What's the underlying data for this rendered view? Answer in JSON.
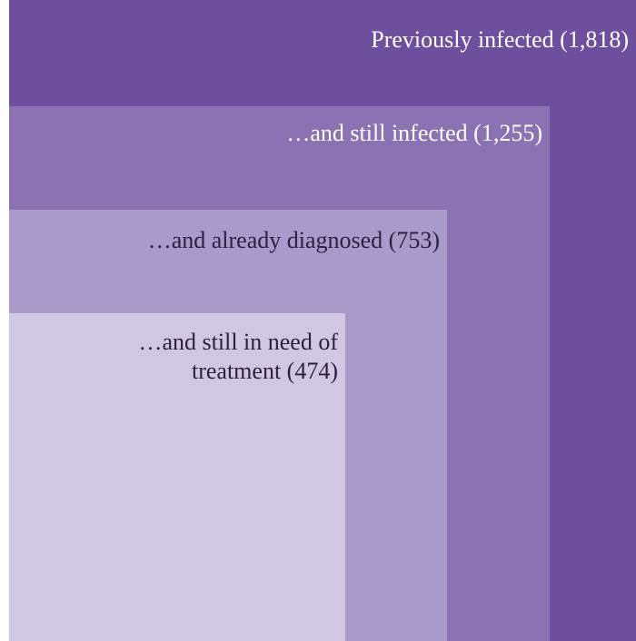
{
  "levels": [
    {
      "label": "Previously infected (1,818)",
      "count": 1818,
      "fill": "#6e4f9e",
      "text_color": "#ffffff"
    },
    {
      "label": "…and still infected (1,255)",
      "count": 1255,
      "fill": "#8a72b3",
      "text_color": "#ffffff"
    },
    {
      "label": "…and already diagnosed (753)",
      "count": 753,
      "fill": "#a99ac9",
      "text_color": "#2b2140"
    },
    {
      "label_line1": "…and still in need of",
      "label_line2": "treatment (474)",
      "count": 474,
      "fill": "#d0c8e3",
      "text_color": "#2b2140"
    }
  ]
}
